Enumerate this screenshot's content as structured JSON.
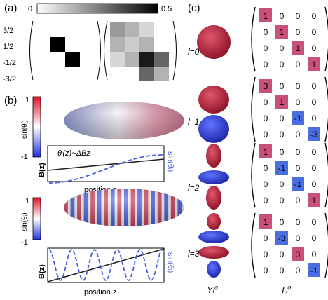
{
  "panels": {
    "a": {
      "label": "(a)",
      "colorbar": {
        "min": "0",
        "max": "0.5"
      },
      "row_labels": [
        "3/2",
        "1/2",
        "-1/2",
        "-3/2"
      ],
      "left_matrix": [
        [
          0,
          0,
          0,
          0
        ],
        [
          0,
          0.5,
          0,
          0
        ],
        [
          0,
          0,
          0.5,
          0
        ],
        [
          0,
          0,
          0,
          0
        ]
      ],
      "right_matrix": [
        [
          0.2,
          0.15,
          0.08,
          0
        ],
        [
          0.15,
          0.1,
          0.15,
          0
        ],
        [
          0.08,
          0.15,
          0.45,
          0.3
        ],
        [
          0,
          0,
          0.3,
          0.15
        ]
      ]
    },
    "b": {
      "label": "(b)",
      "colorbar": {
        "max": "1",
        "min": "-1",
        "label": "sin(θᵢ)"
      },
      "top_plot": {
        "annotation": "θᵢ(z)~ΔBz",
        "left_axis": "B(z)",
        "right_axis": "sin(θᵢ)",
        "xlabel": "position z"
      },
      "bottom_plot": {
        "left_axis": "B(z)",
        "right_axis": "sin(θᵢ)",
        "xlabel": "position z"
      }
    },
    "c": {
      "label": "(c)",
      "column_labels": {
        "harmonic": "Yₗ⁰",
        "tensor": "Tₗ⁰"
      },
      "rows": [
        {
          "l_label": "l=0",
          "matrix": [
            [
              "1",
              "0",
              "0",
              "0"
            ],
            [
              "0",
              "1",
              "0",
              "0"
            ],
            [
              "0",
              "0",
              "1",
              "0"
            ],
            [
              "0",
              "0",
              "0",
              "1"
            ]
          ],
          "highlight": [
            "pink",
            "pink",
            "pink",
            "pink"
          ]
        },
        {
          "l_label": "l=1",
          "matrix": [
            [
              "3",
              "0",
              "0",
              "0"
            ],
            [
              "0",
              "1",
              "0",
              "0"
            ],
            [
              "0",
              "0",
              "-1",
              "0"
            ],
            [
              "0",
              "0",
              "0",
              "-3"
            ]
          ],
          "highlight": [
            "pink",
            "pink",
            "blue",
            "blue"
          ]
        },
        {
          "l_label": "l=2",
          "matrix": [
            [
              "1",
              "0",
              "0",
              "0"
            ],
            [
              "0",
              "-1",
              "0",
              "0"
            ],
            [
              "0",
              "0",
              "-1",
              "0"
            ],
            [
              "0",
              "0",
              "0",
              "1"
            ]
          ],
          "highlight": [
            "pink",
            "blue",
            "blue",
            "pink"
          ]
        },
        {
          "l_label": "l=3",
          "matrix": [
            [
              "1",
              "0",
              "0",
              "0"
            ],
            [
              "0",
              "-3",
              "0",
              "0"
            ],
            [
              "0",
              "0",
              "3",
              "0"
            ],
            [
              "0",
              "0",
              "0",
              "-1"
            ]
          ],
          "highlight": [
            "pink",
            "blue",
            "pink",
            "blue"
          ]
        }
      ]
    }
  },
  "colors": {
    "pink": "#c8507a",
    "blue": "#4a6de0",
    "red": "#c0223a",
    "darkblue": "#2b3fd8"
  }
}
